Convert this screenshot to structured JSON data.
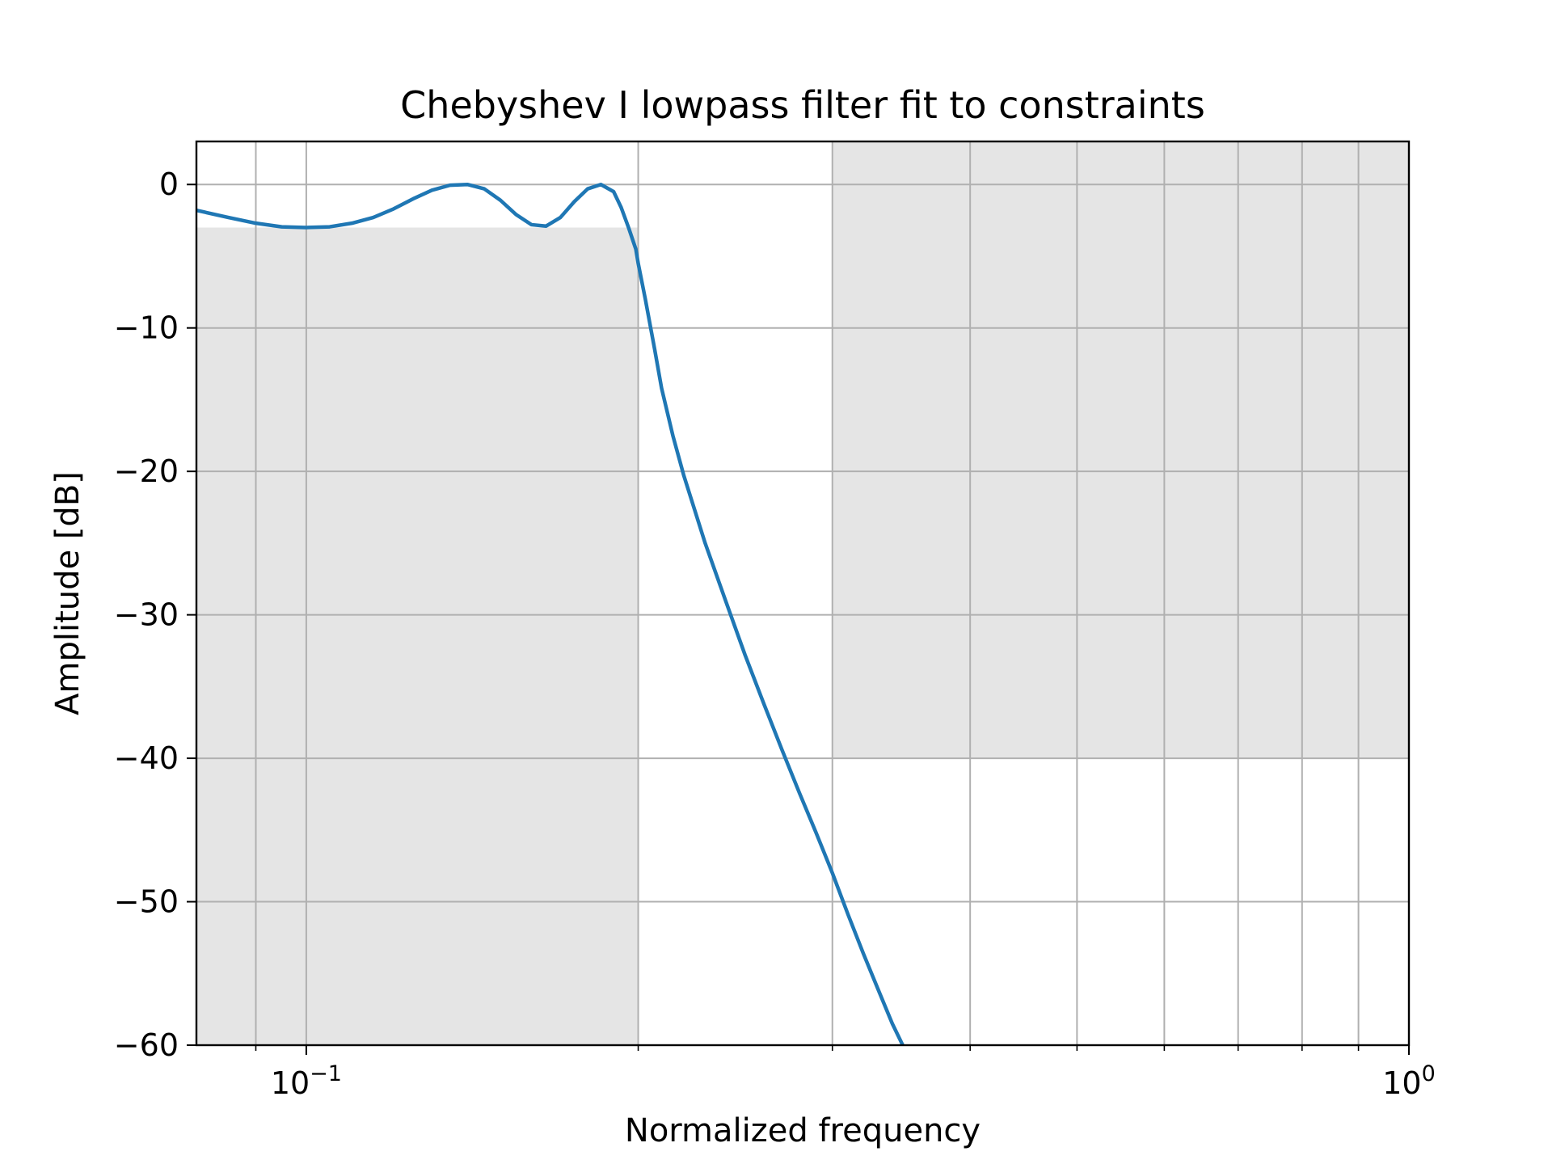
{
  "chart_data": {
    "type": "line",
    "title": "Chebyshev I lowpass filter fit to constraints",
    "xlabel": "Normalized frequency",
    "ylabel": "Amplitude [dB]",
    "x_scale": "log",
    "xlim": [
      0.0795,
      1.0
    ],
    "ylim": [
      -60,
      3
    ],
    "grid": true,
    "x_ticks": [
      {
        "value": 0.1,
        "base": "10",
        "exp": "−1"
      },
      {
        "value": 1.0,
        "base": "10",
        "exp": "0"
      }
    ],
    "x_minor_ticks": [
      0.09,
      0.2,
      0.3,
      0.4,
      0.5,
      0.6,
      0.7,
      0.8,
      0.9
    ],
    "y_ticks": [
      {
        "value": 0,
        "label": "0"
      },
      {
        "value": -10,
        "label": "−10"
      },
      {
        "value": -20,
        "label": "−20"
      },
      {
        "value": -30,
        "label": "−30"
      },
      {
        "value": -40,
        "label": "−40"
      },
      {
        "value": -50,
        "label": "−50"
      },
      {
        "value": -60,
        "label": "−60"
      }
    ],
    "constraint_regions": [
      {
        "x": [
          0.0795,
          0.2
        ],
        "y": [
          -60,
          -3
        ]
      },
      {
        "x": [
          0.3,
          1.0
        ],
        "y": [
          -40,
          3
        ]
      }
    ],
    "colors": {
      "line": "#1f77b4",
      "region": "#e5e5e5",
      "grid": "#b0b0b0"
    },
    "series": [
      {
        "x": [
          0.0795,
          0.085,
          0.09,
          0.095,
          0.1,
          0.105,
          0.11,
          0.115,
          0.12,
          0.125,
          0.13,
          0.135,
          0.14,
          0.145,
          0.15,
          0.155,
          0.16,
          0.165,
          0.17,
          0.175,
          0.18,
          0.185,
          0.19,
          0.193,
          0.196,
          0.199,
          0.2,
          0.203,
          0.207,
          0.21,
          0.215,
          0.22,
          0.23,
          0.24,
          0.25,
          0.26,
          0.27,
          0.28,
          0.29,
          0.3,
          0.31,
          0.32,
          0.33,
          0.34,
          0.35,
          0.355
        ],
        "y": [
          -1.8,
          -2.3,
          -2.7,
          -2.95,
          -3.0,
          -2.95,
          -2.7,
          -2.3,
          -1.7,
          -1.0,
          -0.4,
          -0.05,
          0.0,
          -0.3,
          -1.1,
          -2.1,
          -2.8,
          -2.9,
          -2.3,
          -1.2,
          -0.3,
          0.0,
          -0.5,
          -1.6,
          -3.0,
          -4.5,
          -5.5,
          -8.0,
          -11.5,
          -14.2,
          -17.5,
          -20.3,
          -25.0,
          -29.0,
          -32.8,
          -36.2,
          -39.4,
          -42.4,
          -45.2,
          -48.0,
          -50.9,
          -53.6,
          -56.1,
          -58.5,
          -60.5,
          -61.5
        ]
      }
    ]
  }
}
